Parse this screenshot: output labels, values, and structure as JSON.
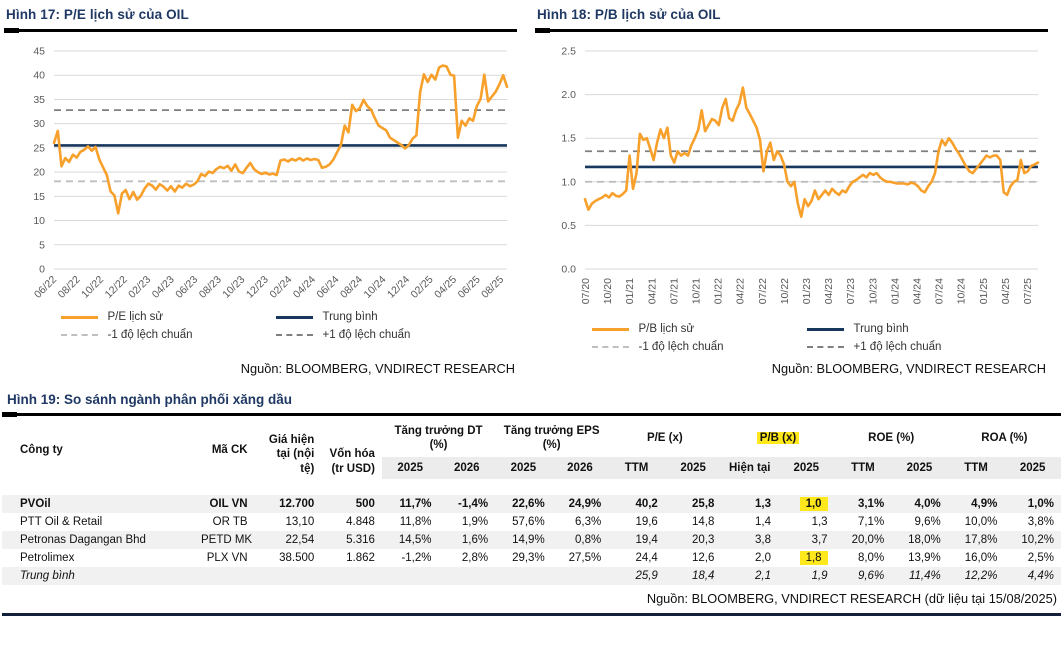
{
  "chart_data": [
    {
      "type": "line",
      "title": "Hình 17: P/E lịch sử của OIL",
      "source": "Nguồn: BLOOMBERG, VNDIRECT RESEARCH",
      "xlabel": "",
      "ylabel": "",
      "ylim": [
        0,
        45
      ],
      "yticks": [
        0,
        5,
        10,
        15,
        20,
        25,
        30,
        35,
        40,
        45
      ],
      "ytick_labels": [
        "0",
        "5",
        "10",
        "15",
        "20",
        "25",
        "30",
        "35",
        "40",
        "45"
      ],
      "x_ticks": [
        "06/22",
        "08/22",
        "10/22",
        "12/22",
        "02/23",
        "04/23",
        "06/23",
        "08/23",
        "10/23",
        "12/23",
        "02/24",
        "04/24",
        "06/24",
        "08/24",
        "10/24",
        "12/24",
        "02/25",
        "04/25",
        "06/25",
        "08/25"
      ],
      "grid": true,
      "legend_position": "bottom",
      "series": [
        {
          "name": "P/E lịch sử",
          "color": "#F7A02B",
          "values": [
            26.0,
            28.5,
            21.2,
            22.9,
            22.1,
            23.6,
            23.0,
            24.2,
            24.6,
            25.3,
            24.4,
            25.2,
            22.6,
            21.0,
            19.4,
            16.0,
            15.2,
            11.5,
            15.6,
            16.3,
            14.4,
            15.9,
            14.3,
            15.1,
            16.6,
            17.6,
            17.2,
            16.4,
            17.5,
            17.0,
            16.2,
            17.1,
            16.0,
            17.2,
            16.8,
            17.6,
            17.1,
            17.4,
            18.1,
            19.6,
            19.2,
            20.1,
            19.8,
            20.6,
            21.1,
            20.8,
            21.3,
            20.3,
            21.6,
            20.1,
            19.8,
            20.9,
            21.9,
            20.6,
            20.0,
            19.6,
            19.9,
            19.5,
            19.7,
            19.4,
            22.4,
            22.6,
            22.2,
            22.7,
            22.4,
            22.9,
            22.4,
            22.8,
            22.5,
            22.7,
            22.5,
            20.9,
            21.1,
            21.6,
            22.6,
            24.1,
            25.6,
            29.6,
            28.2,
            33.9,
            32.6,
            33.2,
            34.9,
            33.6,
            32.9,
            31.1,
            29.6,
            29.1,
            28.6,
            27.1,
            26.6,
            26.1,
            25.6,
            24.9,
            25.6,
            26.9,
            27.6,
            36.6,
            40.2,
            38.6,
            40.1,
            39.1,
            41.6,
            42.0,
            41.8,
            40.1,
            39.9,
            27.1,
            30.6,
            29.6,
            31.1,
            30.6,
            33.6,
            35.1,
            40.1,
            34.6,
            35.6,
            36.6,
            38.1,
            40.0,
            37.6
          ]
        }
      ],
      "ref_lines": [
        {
          "name": "Trung bình",
          "value": 25.5,
          "color": "#17375E",
          "dashed": false
        },
        {
          "name": "+1 độ lệch chuẩn",
          "value": 32.8,
          "color": "#7F7F7F",
          "dashed": true
        },
        {
          "name": "-1 độ lệch chuẩn",
          "value": 18.1,
          "color": "#BFBFBF",
          "dashed": true
        }
      ],
      "legend": [
        {
          "label": "P/E lịch sử",
          "color": "#F7A02B",
          "dashed": false
        },
        {
          "label": "Trung bình",
          "color": "#17375E",
          "dashed": false
        },
        {
          "label": "-1 độ lệch chuẩn",
          "color": "#BFBFBF",
          "dashed": true
        },
        {
          "label": "+1 độ lệch chuẩn",
          "color": "#7F7F7F",
          "dashed": true
        }
      ]
    },
    {
      "type": "line",
      "title": "Hình 18: P/B lịch sử của OIL",
      "source": "Nguồn: BLOOMBERG, VNDIRECT RESEARCH",
      "xlabel": "",
      "ylabel": "",
      "ylim": [
        0,
        2.5
      ],
      "yticks": [
        0,
        0.5,
        1.0,
        1.5,
        2.0,
        2.5
      ],
      "ytick_labels": [
        "0.0",
        "0.5",
        "1.0",
        "1.5",
        "2.0",
        "2.5"
      ],
      "x_ticks": [
        "07/20",
        "10/20",
        "01/21",
        "04/21",
        "07/21",
        "10/21",
        "01/22",
        "04/22",
        "07/22",
        "10/22",
        "01/23",
        "04/23",
        "07/23",
        "10/23",
        "01/24",
        "04/24",
        "07/24",
        "10/24",
        "01/25",
        "04/25",
        "07/25"
      ],
      "grid": true,
      "legend_position": "bottom",
      "series": [
        {
          "name": "P/B lịch sử",
          "color": "#F7A02B",
          "values": [
            0.8,
            0.68,
            0.75,
            0.78,
            0.8,
            0.82,
            0.85,
            0.82,
            0.87,
            0.84,
            0.83,
            0.86,
            0.9,
            1.3,
            0.92,
            1.1,
            1.55,
            1.48,
            1.5,
            1.38,
            1.25,
            1.45,
            1.6,
            1.5,
            1.62,
            1.3,
            1.22,
            1.35,
            1.3,
            1.33,
            1.3,
            1.42,
            1.5,
            1.6,
            1.82,
            1.58,
            1.65,
            1.72,
            1.7,
            1.65,
            1.85,
            1.95,
            1.73,
            1.7,
            1.82,
            1.9,
            2.08,
            1.85,
            1.78,
            1.7,
            1.62,
            1.48,
            1.12,
            1.35,
            1.45,
            1.25,
            1.35,
            1.3,
            1.2,
            1.0,
            0.95,
            1.0,
            0.75,
            0.6,
            0.8,
            0.72,
            0.78,
            0.9,
            0.8,
            0.85,
            0.9,
            0.85,
            0.92,
            0.88,
            0.85,
            0.9,
            0.88,
            0.95,
            1.0,
            1.02,
            1.05,
            1.08,
            1.05,
            1.1,
            1.08,
            1.1,
            1.05,
            1.02,
            1.0,
            1.0,
            0.99,
            0.98,
            0.98,
            0.98,
            0.97,
            0.99,
            0.98,
            0.95,
            0.9,
            0.88,
            0.95,
            1.0,
            1.1,
            1.35,
            1.48,
            1.42,
            1.5,
            1.45,
            1.38,
            1.32,
            1.25,
            1.18,
            1.12,
            1.1,
            1.15,
            1.2,
            1.25,
            1.3,
            1.28,
            1.3,
            1.3,
            1.25,
            0.88,
            0.85,
            0.95,
            1.0,
            1.02,
            1.25,
            1.1,
            1.12,
            1.18,
            1.2,
            1.22
          ]
        }
      ],
      "ref_lines": [
        {
          "name": "Trung bình",
          "value": 1.17,
          "color": "#17375E",
          "dashed": false
        },
        {
          "name": "+1 độ lệch chuẩn",
          "value": 1.35,
          "color": "#7F7F7F",
          "dashed": true
        },
        {
          "name": "-1 độ lệch chuẩn",
          "value": 1.0,
          "color": "#BFBFBF",
          "dashed": true
        }
      ],
      "legend": [
        {
          "label": "P/B lịch sử",
          "color": "#F7A02B",
          "dashed": false
        },
        {
          "label": "Trung bình",
          "color": "#17375E",
          "dashed": false
        },
        {
          "label": "-1 độ lệch chuẩn",
          "color": "#BFBFBF",
          "dashed": true
        },
        {
          "label": "+1 độ lệch chuẩn",
          "color": "#7F7F7F",
          "dashed": true
        }
      ]
    },
    {
      "type": "table",
      "title": "Hình 19: So sánh ngành phân phối xăng dầu",
      "source": "Nguồn: BLOOMBERG, VNDIRECT RESEARCH (dữ liệu tại 15/08/2025)",
      "highlight_color": "#FFE81C",
      "columns": [
        {
          "label": "Công ty"
        },
        {
          "label": "Mã CK"
        },
        {
          "label": "Giá hiện tại (nội tệ)"
        },
        {
          "label": "Vốn hóa (tr USD)"
        },
        {
          "label": "Tăng trưởng DT (%)",
          "sub": [
            "2025",
            "2026"
          ]
        },
        {
          "label": "Tăng trưởng EPS (%)",
          "sub": [
            "2025",
            "2026"
          ]
        },
        {
          "label": "P/E (x)",
          "sub": [
            "TTM",
            "2025"
          ]
        },
        {
          "label": "P/B (x)",
          "sub": [
            "Hiện tại",
            "2025"
          ],
          "highlight": true
        },
        {
          "label": "ROE (%)",
          "sub": [
            "TTM",
            "2025"
          ]
        },
        {
          "label": "ROA (%)",
          "sub": [
            "TTM",
            "2025"
          ]
        }
      ],
      "rows": [
        {
          "cells": [
            "PVOil",
            "OIL VN",
            "12.700",
            "500",
            "11,7%",
            "-1,4%",
            "22,6%",
            "24,9%",
            "40,2",
            "25,8",
            "1,3",
            "1,0",
            "3,1%",
            "4,0%",
            "4,9%",
            "1,0%"
          ],
          "bold": true,
          "highlight_cells": [
            11
          ]
        },
        {
          "cells": [
            "PTT Oil & Retail",
            "OR TB",
            "13,10",
            "4.848",
            "11,8%",
            "1,9%",
            "57,6%",
            "6,3%",
            "19,6",
            "14,8",
            "1,4",
            "1,3",
            "7,1%",
            "9,6%",
            "10,0%",
            "3,8%"
          ]
        },
        {
          "cells": [
            "Petronas Dagangan Bhd",
            "PETD MK",
            "22,54",
            "5.316",
            "14,5%",
            "1,6%",
            "14,9%",
            "0,8%",
            "19,4",
            "20,3",
            "3,8",
            "3,7",
            "20,0%",
            "18,0%",
            "17,8%",
            "10,2%"
          ]
        },
        {
          "cells": [
            "Petrolimex",
            "PLX VN",
            "38.500",
            "1.862",
            "-1,2%",
            "2,8%",
            "29,3%",
            "27,5%",
            "24,4",
            "12,6",
            "2,0",
            "1,8",
            "8,0%",
            "13,9%",
            "16,0%",
            "2,5%"
          ],
          "highlight_cells": [
            11
          ]
        },
        {
          "cells": [
            "Trung bình",
            "",
            "",
            "",
            "",
            "",
            "",
            "",
            "25,9",
            "18,4",
            "2,1",
            "1,9",
            "9,6%",
            "11,4%",
            "12,2%",
            "4,4%"
          ],
          "italic": true
        }
      ]
    }
  ]
}
